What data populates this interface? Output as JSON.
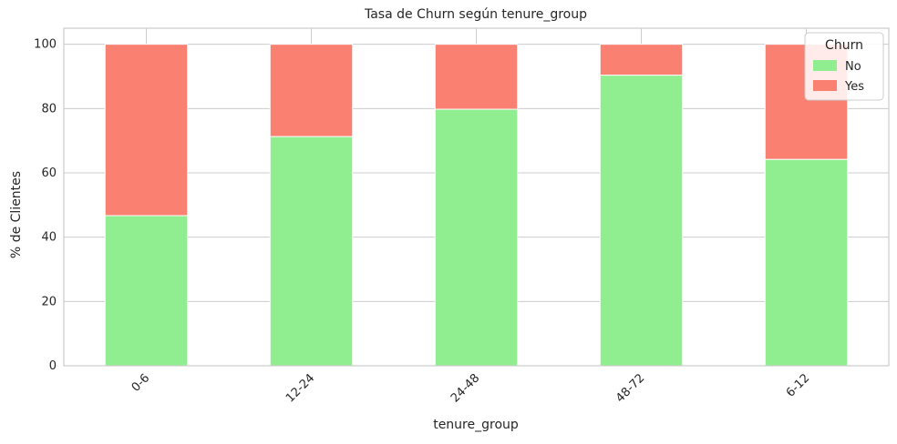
{
  "chart_data": {
    "type": "bar",
    "stacked": true,
    "title": "Tasa de Churn según tenure_group",
    "xlabel": "tenure_group",
    "ylabel": "% de Clientes",
    "categories": [
      "0-6",
      "12-24",
      "24-48",
      "48-72",
      "6-12"
    ],
    "series": [
      {
        "name": "No",
        "values": [
          46.7,
          71.3,
          79.8,
          90.4,
          64.2
        ],
        "color": "#90ee90"
      },
      {
        "name": "Yes",
        "values": [
          53.3,
          28.7,
          20.2,
          9.6,
          35.8
        ],
        "color": "#fa8072"
      }
    ],
    "ylim": [
      0,
      105
    ],
    "yticks": [
      0,
      20,
      40,
      60,
      80,
      100
    ],
    "grid": true,
    "legend": {
      "title": "Churn",
      "placement": "top-right"
    }
  }
}
